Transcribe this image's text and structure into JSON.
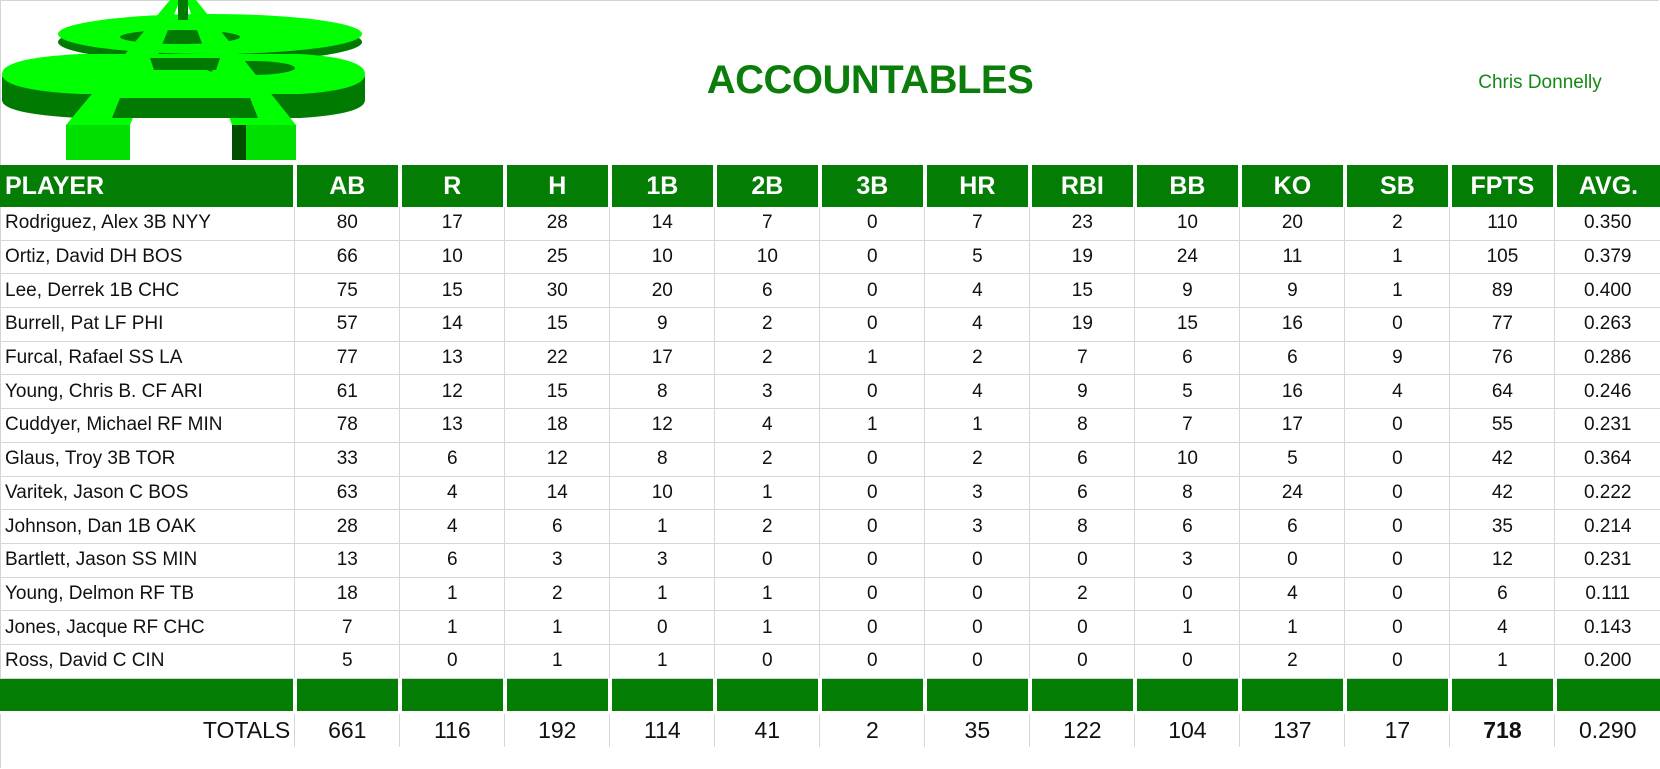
{
  "header": {
    "title": "ACCOUNTABLES",
    "owner": "Chris Donnelly",
    "logo_colors": {
      "face": "#00ff00",
      "side": "#007a00",
      "shadow": "#004d00"
    }
  },
  "table": {
    "columns": [
      "PLAYER",
      "AB",
      "R",
      "H",
      "1B",
      "2B",
      "3B",
      "HR",
      "RBI",
      "BB",
      "KO",
      "SB",
      "FPTS",
      "AVG."
    ],
    "rows": [
      [
        "Rodriguez, Alex 3B NYY",
        "80",
        "17",
        "28",
        "14",
        "7",
        "0",
        "7",
        "23",
        "10",
        "20",
        "2",
        "110",
        "0.350"
      ],
      [
        "Ortiz, David DH BOS",
        "66",
        "10",
        "25",
        "10",
        "10",
        "0",
        "5",
        "19",
        "24",
        "11",
        "1",
        "105",
        "0.379"
      ],
      [
        "Lee, Derrek 1B CHC",
        "75",
        "15",
        "30",
        "20",
        "6",
        "0",
        "4",
        "15",
        "9",
        "9",
        "1",
        "89",
        "0.400"
      ],
      [
        "Burrell, Pat LF PHI",
        "57",
        "14",
        "15",
        "9",
        "2",
        "0",
        "4",
        "19",
        "15",
        "16",
        "0",
        "77",
        "0.263"
      ],
      [
        "Furcal, Rafael SS LA",
        "77",
        "13",
        "22",
        "17",
        "2",
        "1",
        "2",
        "7",
        "6",
        "6",
        "9",
        "76",
        "0.286"
      ],
      [
        "Young, Chris B. CF ARI",
        "61",
        "12",
        "15",
        "8",
        "3",
        "0",
        "4",
        "9",
        "5",
        "16",
        "4",
        "64",
        "0.246"
      ],
      [
        "Cuddyer, Michael RF MIN",
        "78",
        "13",
        "18",
        "12",
        "4",
        "1",
        "1",
        "8",
        "7",
        "17",
        "0",
        "55",
        "0.231"
      ],
      [
        "Glaus, Troy 3B TOR",
        "33",
        "6",
        "12",
        "8",
        "2",
        "0",
        "2",
        "6",
        "10",
        "5",
        "0",
        "42",
        "0.364"
      ],
      [
        "Varitek, Jason C BOS",
        "63",
        "4",
        "14",
        "10",
        "1",
        "0",
        "3",
        "6",
        "8",
        "24",
        "0",
        "42",
        "0.222"
      ],
      [
        "Johnson, Dan 1B OAK",
        "28",
        "4",
        "6",
        "1",
        "2",
        "0",
        "3",
        "8",
        "6",
        "6",
        "0",
        "35",
        "0.214"
      ],
      [
        "Bartlett, Jason SS MIN",
        "13",
        "6",
        "3",
        "3",
        "0",
        "0",
        "0",
        "0",
        "3",
        "0",
        "0",
        "12",
        "0.231"
      ],
      [
        "Young, Delmon RF TB",
        "18",
        "1",
        "2",
        "1",
        "1",
        "0",
        "0",
        "2",
        "0",
        "4",
        "0",
        "6",
        "0.111"
      ],
      [
        "Jones, Jacque RF CHC",
        "7",
        "1",
        "1",
        "0",
        "1",
        "0",
        "0",
        "0",
        "1",
        "1",
        "0",
        "4",
        "0.143"
      ],
      [
        "Ross, David C CIN",
        "5",
        "0",
        "1",
        "1",
        "0",
        "0",
        "0",
        "0",
        "0",
        "2",
        "0",
        "1",
        "0.200"
      ]
    ],
    "totals": [
      "TOTALS",
      "661",
      "116",
      "192",
      "114",
      "41",
      "2",
      "35",
      "122",
      "104",
      "137",
      "17",
      "718",
      "0.290"
    ]
  },
  "colors": {
    "header_bg": "#037d03",
    "header_text": "#ffffff",
    "title": "#0a7d0a",
    "grid": "#d6d6d6"
  }
}
